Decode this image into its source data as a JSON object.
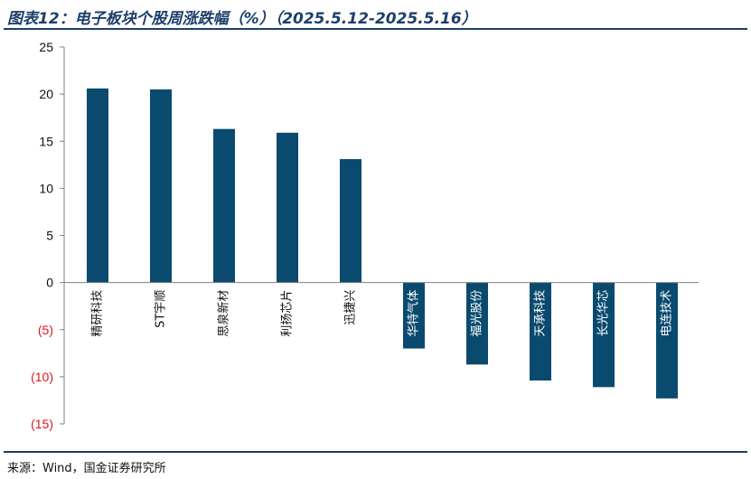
{
  "title": "图表12：电子板块个股周涨跌幅（%）（2025.5.12-2025.5.16）",
  "source": "来源：Wind，国金证券研究所",
  "colors": {
    "bar": "#0b4a6f",
    "negative_tick": "#e0161c",
    "rule": "#1d3f6b",
    "axis": "#7f7f7f"
  },
  "chart_data": {
    "type": "bar",
    "categories": [
      "精研科技",
      "ST宇顺",
      "思泉新材",
      "利扬芯片",
      "迅捷兴",
      "华特气体",
      "福光股份",
      "天承科技",
      "长光华芯",
      "电连技术"
    ],
    "values": [
      20.6,
      20.5,
      16.3,
      15.9,
      13.1,
      -7.0,
      -8.7,
      -10.4,
      -11.1,
      -12.3
    ],
    "ylim": [
      -15,
      25
    ],
    "yticks": [
      25,
      20,
      15,
      10,
      5,
      0,
      -5,
      -10,
      -15
    ],
    "ytick_labels": [
      "25",
      "20",
      "15",
      "10",
      "5",
      "0",
      "(5)",
      "(10)",
      "(15)"
    ],
    "xlabel": "",
    "ylabel": "",
    "grid": false,
    "legend": "none"
  }
}
